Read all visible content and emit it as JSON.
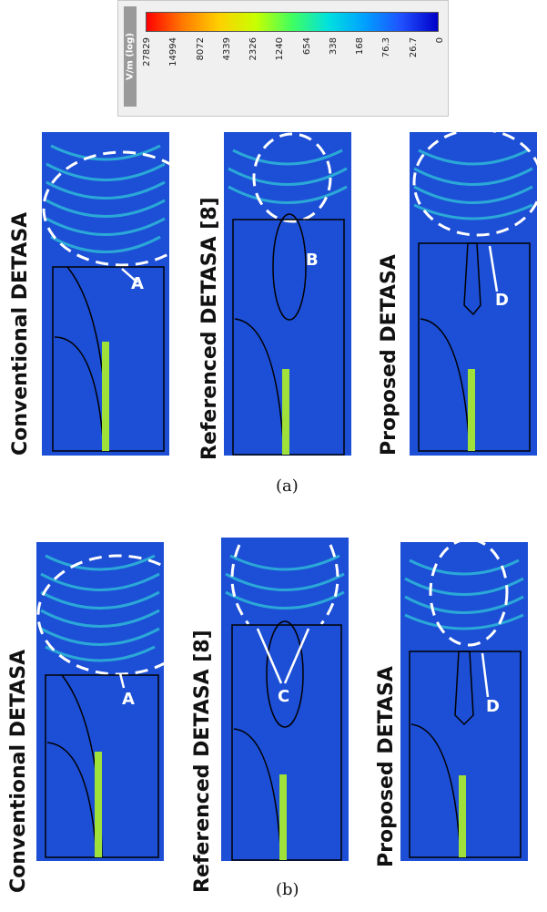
{
  "colorbar": {
    "unit_label": "V/m (log)",
    "tick_labels": [
      "27829",
      "14994",
      "8072",
      "4339",
      "2326",
      "1240",
      "654",
      "338",
      "168",
      "76.3",
      "26.7",
      "0"
    ]
  },
  "panels_a": [
    {
      "label": "Conventional DETASA",
      "marker": "A"
    },
    {
      "label": "Referenced DETASA [8]",
      "marker": "B"
    },
    {
      "label": "Proposed DETASA",
      "marker": "D"
    }
  ],
  "panels_b": [
    {
      "label": "Conventional DETASA",
      "marker": "A"
    },
    {
      "label": "Referenced DETASA [8]",
      "marker": "C"
    },
    {
      "label": "Proposed DETASA",
      "marker": "D"
    }
  ],
  "captions": {
    "a": "(a)",
    "b": "(b)"
  },
  "colors": {
    "field_bg": "#1c4fd6",
    "field_wave": "#2fbfd8",
    "hot": "#9fe03a"
  }
}
